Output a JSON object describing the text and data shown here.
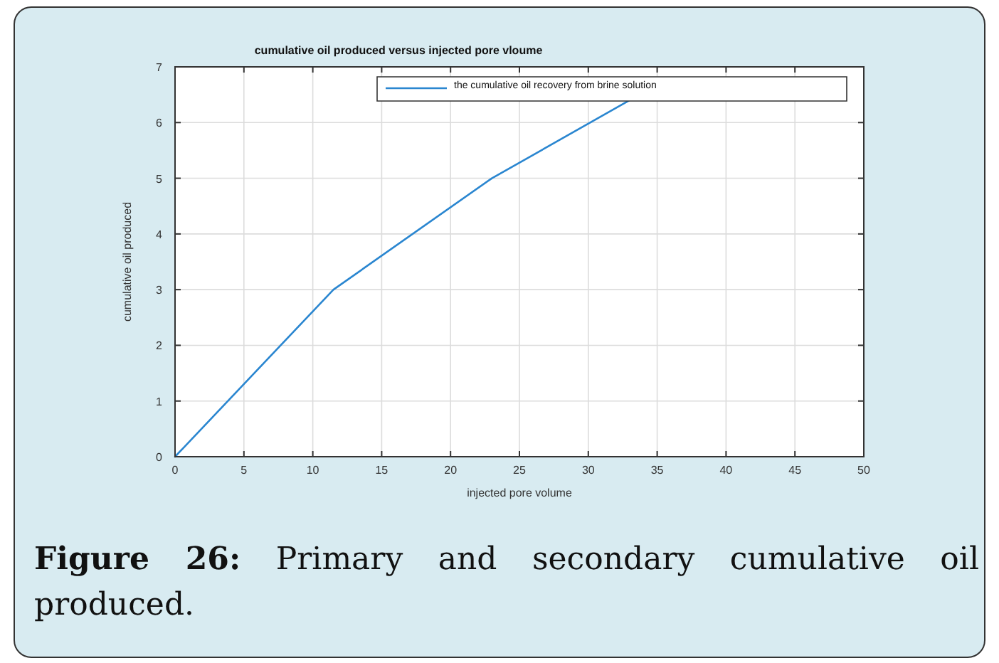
{
  "chart_data": {
    "type": "line",
    "title": "cumulative oil produced versus injected pore vloume",
    "xlabel": "injected pore volume",
    "ylabel": "cumulative oil produced",
    "x": [
      0,
      11.5,
      23,
      33
    ],
    "series": [
      {
        "name": "the cumulative oil recovery from brine solution",
        "color": "#2a86d0",
        "values": [
          0,
          3,
          5,
          6.4
        ]
      }
    ],
    "xlim": [
      0,
      50
    ],
    "xticks": [
      0,
      5,
      10,
      15,
      20,
      25,
      30,
      35,
      40,
      45,
      50
    ],
    "ylim": [
      0,
      7
    ],
    "yticks": [
      0,
      1,
      2,
      3,
      4,
      5,
      6,
      7
    ],
    "grid": true,
    "legend": "top right",
    "marker": "none",
    "line_style": "solid",
    "annotations": [
      "Figure 26: Primary and secondary cumulative oil produced."
    ]
  }
}
